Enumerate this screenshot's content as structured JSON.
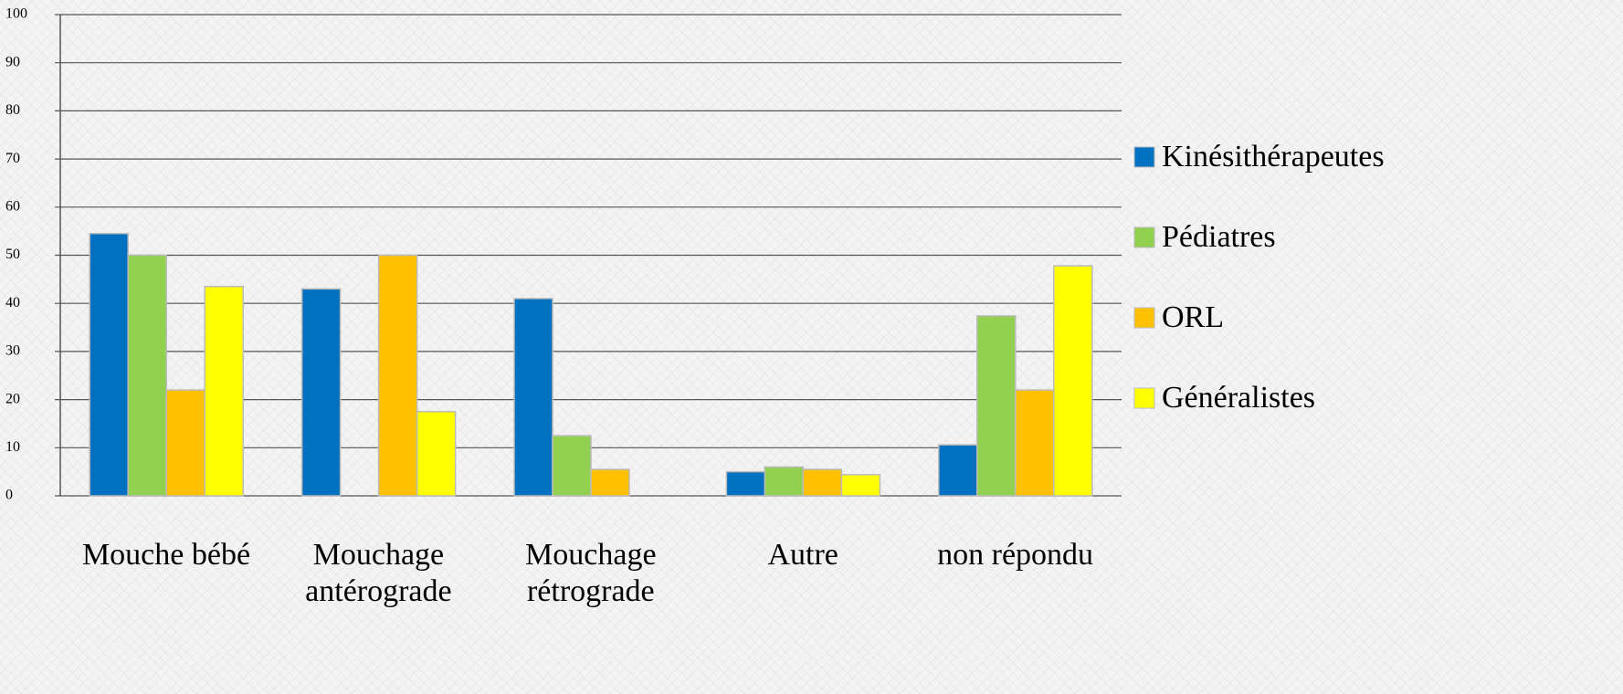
{
  "chart_data": {
    "type": "bar",
    "categories": [
      "Mouche bébé",
      "Mouchage antérograde",
      "Mouchage rétrograde",
      "Autre",
      "non répondu"
    ],
    "series": [
      {
        "name": "Kinésithérapeutes",
        "color": "#0070c0",
        "values": [
          54.5,
          43,
          41,
          5,
          10.6
        ]
      },
      {
        "name": "Pédiatres",
        "color": "#92d050",
        "values": [
          50,
          0,
          12.5,
          6,
          37.4
        ]
      },
      {
        "name": "ORL",
        "color": "#ffc000",
        "values": [
          22,
          50,
          5.5,
          5.5,
          22
        ]
      },
      {
        "name": "Généralistes",
        "color": "#ffff00",
        "values": [
          43.5,
          17.5,
          0,
          4.4,
          47.8
        ]
      }
    ],
    "ylim": [
      0,
      100
    ],
    "yticks": [
      0,
      10,
      20,
      30,
      40,
      50,
      60,
      70,
      80,
      90,
      100
    ],
    "grid": true,
    "legend": "right"
  }
}
